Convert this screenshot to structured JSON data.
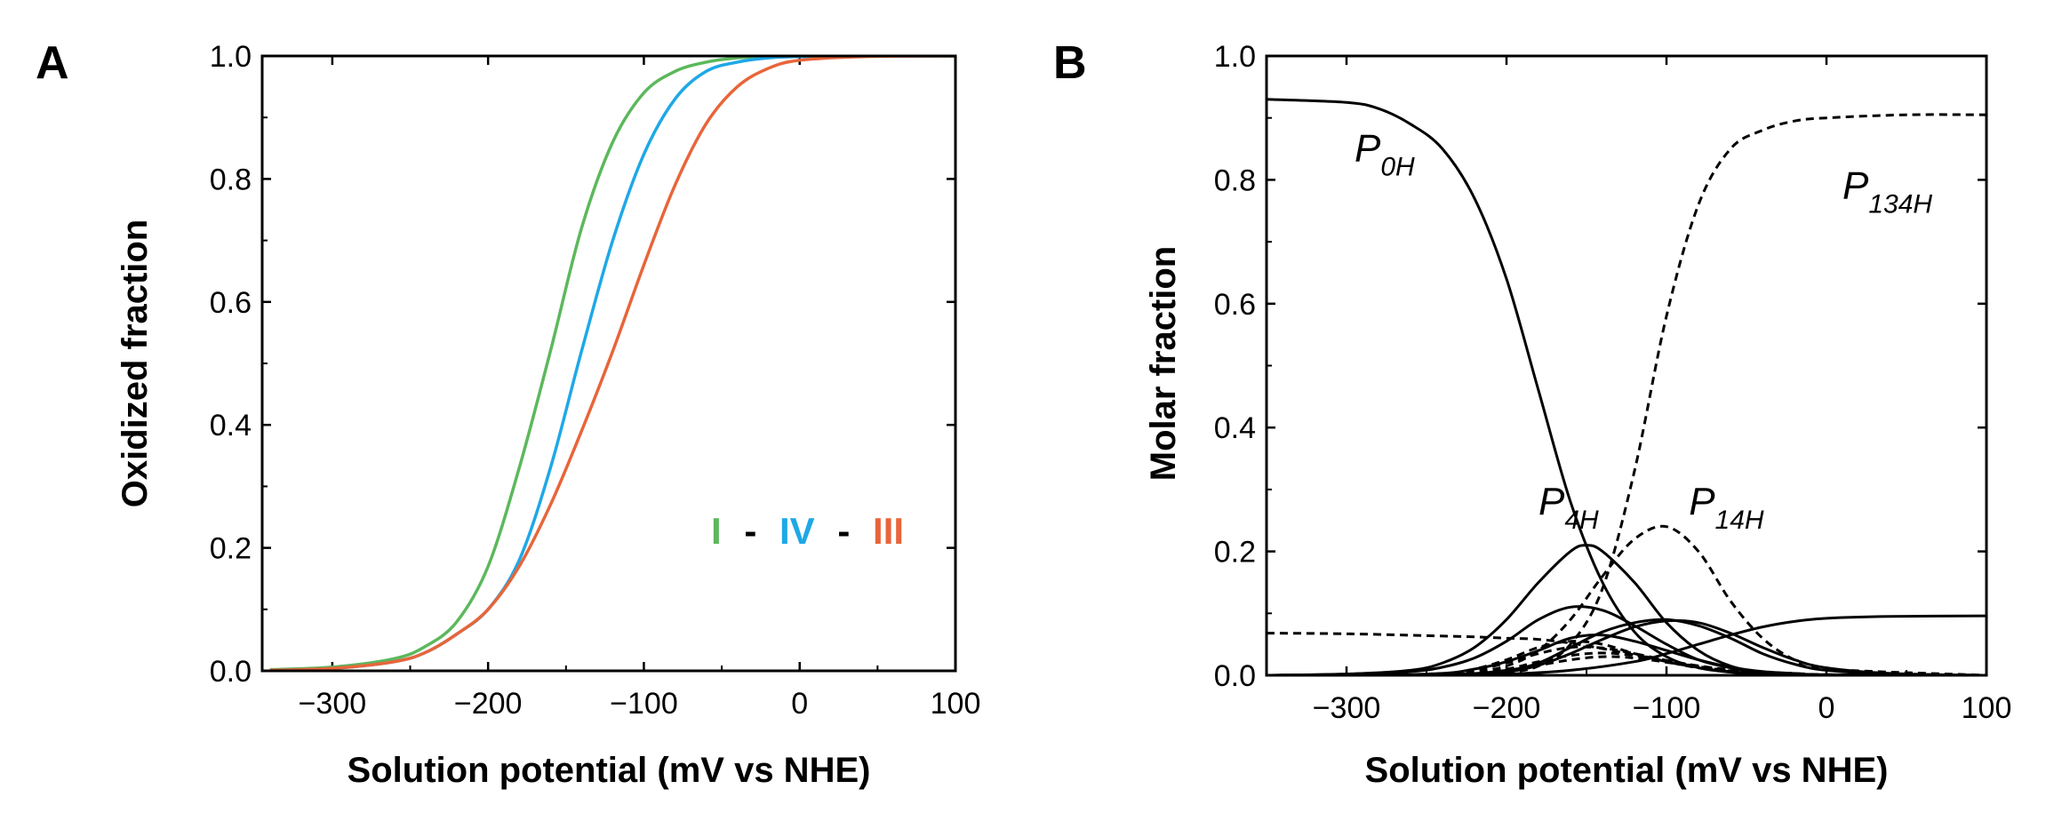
{
  "panels": {
    "a": {
      "label": "A"
    },
    "b": {
      "label": "B"
    }
  },
  "chart_data": [
    {
      "type": "line",
      "panel": "A",
      "xlabel": "Solution potential (mV vs NHE)",
      "ylabel": "Oxidized fraction",
      "xlim": [
        -345,
        100
      ],
      "ylim": [
        0,
        1
      ],
      "x_ticks": [
        "−300",
        "−200",
        "−100",
        "0",
        "100"
      ],
      "x_tick_values": [
        -300,
        -200,
        -100,
        0,
        100
      ],
      "y_ticks": [
        "0.0",
        "0.2",
        "0.4",
        "0.6",
        "0.8",
        "1.0"
      ],
      "y_tick_values": [
        0,
        0.2,
        0.4,
        0.6,
        0.8,
        1.0
      ],
      "legend": {
        "items": [
          "I",
          "IV",
          "III"
        ],
        "separator": "-",
        "colors": [
          "#5cb85c",
          "#1ea8e6",
          "#e8653a"
        ],
        "position": "center-right"
      },
      "series": [
        {
          "name": "I",
          "color": "#5cb85c",
          "x": [
            -340,
            -300,
            -260,
            -240,
            -220,
            -200,
            -180,
            -160,
            -140,
            -120,
            -100,
            -80,
            -60,
            -40,
            -20,
            0,
            40,
            100
          ],
          "y": [
            0.002,
            0.006,
            0.02,
            0.04,
            0.08,
            0.17,
            0.33,
            0.52,
            0.72,
            0.86,
            0.94,
            0.975,
            0.99,
            0.997,
            0.999,
            1.0,
            1.0,
            1.0
          ]
        },
        {
          "name": "IV",
          "color": "#1ea8e6",
          "x": [
            -340,
            -300,
            -260,
            -240,
            -220,
            -200,
            -180,
            -160,
            -140,
            -120,
            -100,
            -80,
            -60,
            -40,
            -20,
            0,
            40,
            100
          ],
          "y": [
            0.001,
            0.004,
            0.015,
            0.03,
            0.06,
            0.1,
            0.18,
            0.33,
            0.52,
            0.7,
            0.84,
            0.93,
            0.975,
            0.99,
            0.997,
            0.999,
            1.0,
            1.0
          ]
        },
        {
          "name": "III",
          "color": "#e8653a",
          "x": [
            -340,
            -300,
            -260,
            -240,
            -220,
            -200,
            -180,
            -160,
            -140,
            -120,
            -100,
            -80,
            -60,
            -40,
            -20,
            0,
            40,
            100
          ],
          "y": [
            0.001,
            0.004,
            0.015,
            0.03,
            0.06,
            0.1,
            0.17,
            0.27,
            0.39,
            0.52,
            0.66,
            0.79,
            0.89,
            0.95,
            0.98,
            0.993,
            0.999,
            1.0
          ]
        }
      ]
    },
    {
      "type": "line",
      "panel": "B",
      "xlabel": "Solution potential (mV vs NHE)",
      "ylabel": "Molar fraction",
      "xlim": [
        -350,
        100
      ],
      "ylim": [
        0,
        1
      ],
      "x_ticks": [
        "−300",
        "−200",
        "−100",
        "0",
        "100"
      ],
      "x_tick_values": [
        -300,
        -200,
        -100,
        0,
        100
      ],
      "y_ticks": [
        "0.0",
        "0.2",
        "0.4",
        "0.6",
        "0.8",
        "1.0"
      ],
      "y_tick_values": [
        0,
        0.2,
        0.4,
        0.6,
        0.8,
        1.0
      ],
      "annotations": [
        {
          "main": "P",
          "sub": "0H",
          "x": -295,
          "y": 0.83
        },
        {
          "main": "P",
          "sub": "4H",
          "x": -180,
          "y": 0.26
        },
        {
          "main": "P",
          "sub": "14H",
          "x": -86,
          "y": 0.26
        },
        {
          "main": "P",
          "sub": "134H",
          "x": 10,
          "y": 0.77
        }
      ],
      "series": [
        {
          "name": "P0H",
          "style": "solid",
          "x": [
            -350,
            -300,
            -280,
            -260,
            -240,
            -220,
            -200,
            -180,
            -160,
            -140,
            -120,
            -100,
            -80,
            -60,
            -40,
            -20,
            0,
            50,
            100
          ],
          "y": [
            0.93,
            0.925,
            0.915,
            0.89,
            0.85,
            0.77,
            0.64,
            0.46,
            0.28,
            0.15,
            0.07,
            0.03,
            0.012,
            0.005,
            0.002,
            0.001,
            0,
            0,
            0
          ]
        },
        {
          "name": "P134H",
          "style": "dashed",
          "x": [
            -350,
            -240,
            -200,
            -180,
            -160,
            -140,
            -120,
            -100,
            -80,
            -60,
            -40,
            -20,
            0,
            50,
            100
          ],
          "y": [
            0,
            0,
            0.005,
            0.015,
            0.05,
            0.14,
            0.33,
            0.58,
            0.76,
            0.85,
            0.88,
            0.895,
            0.9,
            0.905,
            0.905
          ]
        },
        {
          "name": "P4H",
          "style": "solid",
          "x": [
            -350,
            -300,
            -260,
            -240,
            -220,
            -200,
            -180,
            -160,
            -150,
            -140,
            -120,
            -100,
            -80,
            -60,
            -40,
            -20,
            0,
            100
          ],
          "y": [
            0,
            0.002,
            0.008,
            0.02,
            0.045,
            0.09,
            0.15,
            0.2,
            0.21,
            0.2,
            0.15,
            0.085,
            0.04,
            0.015,
            0.005,
            0.002,
            0,
            0
          ]
        },
        {
          "name": "P14H",
          "style": "dashed",
          "x": [
            -350,
            -240,
            -220,
            -200,
            -180,
            -160,
            -140,
            -120,
            -100,
            -80,
            -60,
            -40,
            -20,
            0,
            100
          ],
          "y": [
            0,
            0.001,
            0.005,
            0.015,
            0.04,
            0.09,
            0.16,
            0.22,
            0.24,
            0.2,
            0.12,
            0.06,
            0.025,
            0.01,
            0
          ]
        },
        {
          "name": "",
          "style": "dashed",
          "x": [
            -350,
            -300,
            -250,
            -220,
            -200,
            -180,
            -160,
            -140,
            -120,
            -100,
            -80,
            -60,
            -40,
            -20,
            0,
            50,
            100
          ],
          "y": [
            0.068,
            0.067,
            0.064,
            0.062,
            0.06,
            0.058,
            0.052,
            0.043,
            0.033,
            0.023,
            0.015,
            0.009,
            0.005,
            0.003,
            0.001,
            0,
            0
          ]
        },
        {
          "name": "",
          "style": "solid",
          "x": [
            -350,
            -300,
            -260,
            -240,
            -220,
            -200,
            -180,
            -160,
            -140,
            -120,
            -100,
            -80,
            -60,
            -40,
            -20,
            0,
            100
          ],
          "y": [
            0,
            0.002,
            0.006,
            0.013,
            0.028,
            0.055,
            0.09,
            0.11,
            0.105,
            0.08,
            0.05,
            0.025,
            0.012,
            0.005,
            0.002,
            0,
            0
          ]
        },
        {
          "name": "",
          "style": "solid",
          "x": [
            -350,
            -250,
            -220,
            -200,
            -180,
            -160,
            -140,
            -120,
            -100,
            -80,
            -60,
            -40,
            -20,
            0,
            100
          ],
          "y": [
            0,
            0.002,
            0.01,
            0.022,
            0.04,
            0.06,
            0.065,
            0.055,
            0.04,
            0.025,
            0.013,
            0.006,
            0.003,
            0.001,
            0
          ]
        },
        {
          "name": "",
          "style": "solid",
          "x": [
            -350,
            -240,
            -200,
            -180,
            -160,
            -140,
            -120,
            -100,
            -80,
            -60,
            -40,
            -20,
            0,
            40,
            100
          ],
          "y": [
            0,
            0.001,
            0.008,
            0.02,
            0.045,
            0.07,
            0.085,
            0.09,
            0.08,
            0.06,
            0.035,
            0.018,
            0.008,
            0.002,
            0
          ]
        },
        {
          "name": "",
          "style": "solid",
          "x": [
            -350,
            -240,
            -200,
            -180,
            -160,
            -140,
            -120,
            -100,
            -80,
            -60,
            -40,
            -20,
            0,
            40,
            100
          ],
          "y": [
            0,
            0.001,
            0.006,
            0.016,
            0.035,
            0.058,
            0.078,
            0.088,
            0.085,
            0.068,
            0.045,
            0.025,
            0.012,
            0.003,
            0
          ]
        },
        {
          "name": "",
          "style": "solid",
          "x": [
            -350,
            -260,
            -200,
            -160,
            -120,
            -100,
            -80,
            -60,
            -40,
            -20,
            0,
            40,
            100
          ],
          "y": [
            0,
            0,
            0.002,
            0.008,
            0.022,
            0.035,
            0.05,
            0.065,
            0.078,
            0.087,
            0.092,
            0.095,
            0.096
          ]
        },
        {
          "name": "",
          "style": "dashed",
          "x": [
            -350,
            -240,
            -220,
            -200,
            -180,
            -160,
            -140,
            -120,
            -100,
            -80,
            -60,
            -40,
            -20,
            0,
            100
          ],
          "y": [
            0,
            0.002,
            0.01,
            0.025,
            0.045,
            0.055,
            0.05,
            0.035,
            0.022,
            0.012,
            0.006,
            0.003,
            0.001,
            0,
            0
          ]
        },
        {
          "name": "",
          "style": "dashed",
          "x": [
            -350,
            -240,
            -220,
            -200,
            -180,
            -160,
            -140,
            -120,
            -100,
            -80,
            -60,
            -40,
            -20,
            0,
            100
          ],
          "y": [
            0,
            0.002,
            0.008,
            0.02,
            0.035,
            0.045,
            0.044,
            0.035,
            0.024,
            0.014,
            0.007,
            0.003,
            0.001,
            0,
            0
          ]
        },
        {
          "name": "",
          "style": "dashed",
          "x": [
            -350,
            -230,
            -200,
            -180,
            -160,
            -140,
            -120,
            -100,
            -80,
            -60,
            -40,
            -20,
            0,
            100
          ],
          "y": [
            0,
            0.002,
            0.01,
            0.022,
            0.032,
            0.036,
            0.032,
            0.024,
            0.015,
            0.008,
            0.004,
            0.001,
            0,
            0
          ]
        },
        {
          "name": "",
          "style": "dashed",
          "x": [
            -350,
            -230,
            -200,
            -180,
            -160,
            -140,
            -120,
            -100,
            -80,
            -60,
            -40,
            -20,
            0,
            100
          ],
          "y": [
            0,
            0.001,
            0.007,
            0.016,
            0.025,
            0.03,
            0.028,
            0.021,
            0.013,
            0.007,
            0.003,
            0.001,
            0,
            0
          ]
        }
      ]
    }
  ]
}
